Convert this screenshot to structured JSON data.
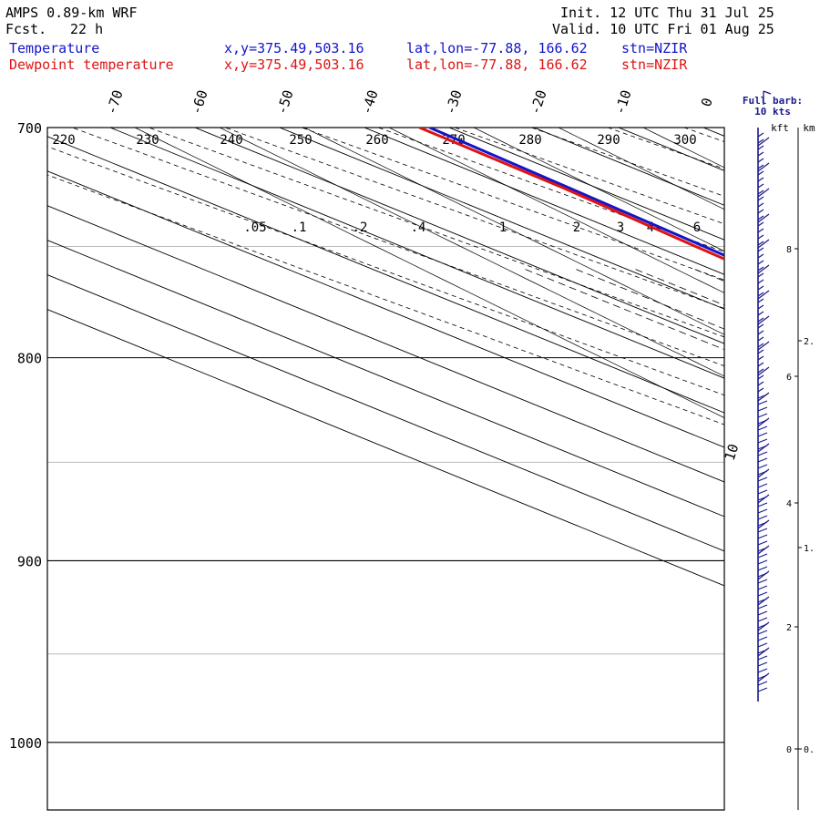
{
  "header": {
    "model": "AMPS 0.89-km WRF",
    "fcst_label": "Fcst.",
    "fcst_value": "22 h",
    "init": "Init. 12 UTC Thu 31 Jul 25",
    "valid": "Valid. 10 UTC Fri 01 Aug 25",
    "temp_label": "Temperature",
    "dew_label": "Dewpoint temperature",
    "temp_xy": "x,y=375.49,503.16",
    "dew_xy": "x,y=375.49,503.16",
    "temp_latlon": "lat,lon=-77.88, 166.62",
    "dew_latlon": "lat,lon=-77.88, 166.62",
    "temp_stn": "stn=NZIR",
    "dew_stn": "stn=NZIR"
  },
  "colors": {
    "temperature": "#1414c8",
    "dewpoint": "#dc1414",
    "barbs": "#1a1a8c",
    "grid": "#000000",
    "light_grid": "#bbbbbb"
  },
  "chart_data": {
    "type": "line",
    "diagram": "skew-T log-p",
    "y_axis": "pressure (hPa), log scale",
    "pressure_range": [
      700,
      1040
    ],
    "pressure_labels": [
      700,
      800,
      900,
      1000
    ],
    "temperature_labels": [
      "-70",
      "-60",
      "-50",
      "-40",
      "-30",
      "-20",
      "-10",
      "0",
      "10"
    ],
    "dry_adiabat_labels": [
      "220",
      "230",
      "240",
      "250",
      "260",
      "270",
      "280",
      "290",
      "300"
    ],
    "mixing_ratio_labels": [
      ".05",
      ".1",
      ".2",
      ".4",
      "1",
      "2",
      "3",
      "4",
      "6"
    ],
    "series": [
      {
        "name": "Temperature",
        "pressure": [
          968,
          945,
          920,
          895,
          870,
          845,
          825,
          800,
          775,
          750,
          725,
          700
        ],
        "values": [
          -29.8,
          -31.0,
          -32.0,
          -33.2,
          -34.4,
          -35.6,
          -36.3,
          -36.2,
          -35.4,
          -34.3,
          -33.3,
          -32.3
        ]
      },
      {
        "name": "Dewpoint temperature",
        "pressure": [
          968,
          960,
          945,
          920,
          895,
          870,
          850,
          835,
          820,
          800,
          775,
          750,
          725,
          700
        ],
        "values": [
          -32.9,
          -33.6,
          -33.8,
          -34.0,
          -34.8,
          -36.2,
          -37.6,
          -38.5,
          -38.2,
          -37.4,
          -36.3,
          -35.3,
          -34.0,
          -33.5
        ]
      }
    ],
    "wind_panel": {
      "title_line1": "Full barb:",
      "title_line2": "10 kts",
      "kft_label": "kft",
      "km_label": "km",
      "kft_ticks": [
        0,
        2,
        4,
        6,
        8
      ],
      "km_ticks": [
        "0.",
        "1.",
        "2."
      ]
    }
  }
}
